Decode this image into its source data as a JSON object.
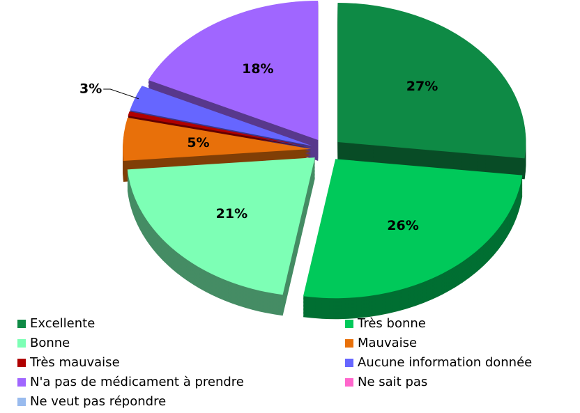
{
  "chart_data": {
    "type": "pie",
    "categories": [
      "Excellente",
      "Très bonne",
      "Bonne",
      "Mauvaise",
      "Très mauvaise",
      "Aucune information donnée",
      "N'a pas de médicament à prendre",
      "Ne sait pas",
      "Ne veut pas répondre"
    ],
    "values": [
      27,
      26,
      21,
      5,
      0.5,
      3,
      18,
      0,
      0
    ],
    "value_labels": [
      "27%",
      "26%",
      "21%",
      "5%",
      null,
      "3%",
      "18%",
      null,
      null
    ],
    "colors": [
      "#0e8a45",
      "#00c95a",
      "#7dffb5",
      "#e8700a",
      "#b00000",
      "#6666ff",
      "#a066ff",
      "#ff66cc",
      "#99bbee"
    ],
    "legend": "bottom"
  }
}
